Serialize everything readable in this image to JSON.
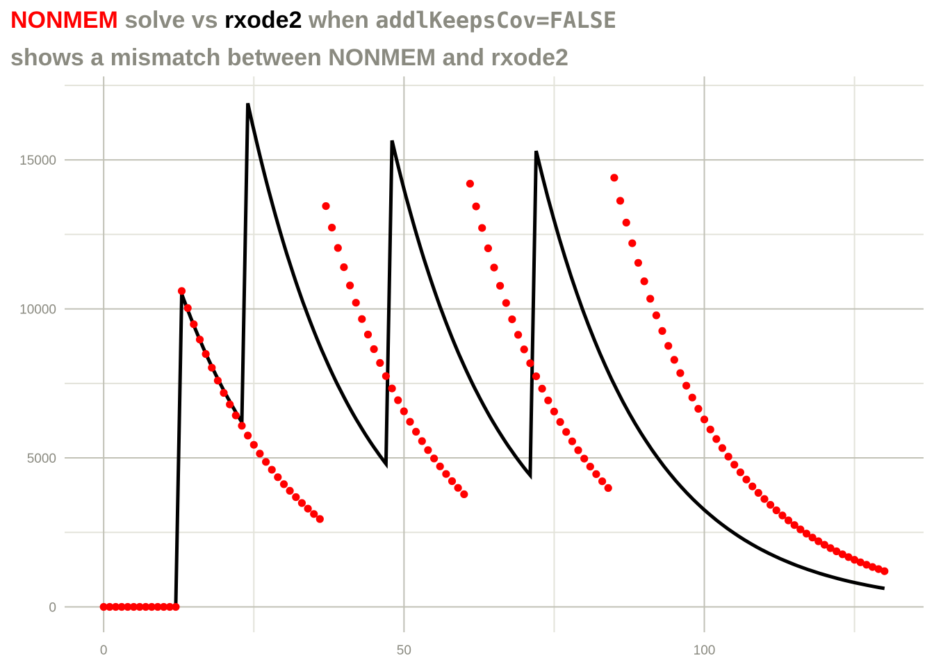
{
  "title": {
    "part_nonmem": "NONMEM",
    "part_solve_vs": " solve vs ",
    "part_rxode2": "rxode2",
    "part_when": " when ",
    "part_code": "addlKeepsCov=FALSE"
  },
  "subtitle": "shows a mismatch between NONMEM and rxode2",
  "colors": {
    "nonmem": "#ff0000",
    "rxode2": "#000000",
    "grid_major": "#c1c1b6",
    "grid_minor": "#e3e3da",
    "text": "#8a8a80"
  },
  "chart_data": {
    "type": "line",
    "xlim": [
      -6.5,
      136.5
    ],
    "ylim": [
      -850,
      17800
    ],
    "x_ticks": [
      0,
      50,
      100
    ],
    "x_tick_labels": [
      "0",
      "50",
      "100"
    ],
    "y_ticks": [
      0,
      5000,
      10000,
      15000
    ],
    "y_tick_labels": [
      "0",
      "5000",
      "10000",
      "15000"
    ],
    "grid": true,
    "legend": "none",
    "series": [
      {
        "style": "line",
        "color": "#000000",
        "segments": [
          {
            "x": [
              0,
              12
            ],
            "y": [
              0,
              0
            ]
          },
          {
            "x_start": 12,
            "x_end": 13,
            "y_start": 0,
            "y_end": 10500
          },
          {
            "x_start": 13,
            "x_end": 23,
            "y_start": 10500,
            "y_end": 6200,
            "decay": true
          },
          {
            "x_start": 23,
            "x_end": 24,
            "y_start": 6200,
            "y_end": 16900
          },
          {
            "x_start": 24,
            "x_end": 47,
            "y_start": 16900,
            "y_end": 4800,
            "decay": true
          },
          {
            "x_start": 47,
            "x_end": 48,
            "y_start": 4800,
            "y_end": 15650
          },
          {
            "x_start": 48,
            "x_end": 71,
            "y_start": 15650,
            "y_end": 4420,
            "decay": true
          },
          {
            "x_start": 71,
            "x_end": 72,
            "y_start": 4420,
            "y_end": 15300
          },
          {
            "x_start": 72,
            "x_end": 130,
            "y_start": 15300,
            "y_end": 620,
            "decay": true
          }
        ]
      },
      {
        "style": "points",
        "color": "#ff0000",
        "groups": [
          {
            "x_start": 0,
            "x_end": 12,
            "step": 1,
            "y_start": 0,
            "y_end": 0
          },
          {
            "x_start": 13,
            "x_end": 36,
            "step": 1,
            "y_start": 10600,
            "y_end": 2950
          },
          {
            "x_start": 37,
            "x_end": 60,
            "step": 1,
            "y_start": 13450,
            "y_end": 3780
          },
          {
            "x_start": 61,
            "x_end": 84,
            "step": 1,
            "y_start": 14200,
            "y_end": 3990
          },
          {
            "x_start": 85,
            "x_end": 130,
            "step": 1,
            "y_start": 14400,
            "y_end": 1200
          }
        ]
      }
    ]
  }
}
